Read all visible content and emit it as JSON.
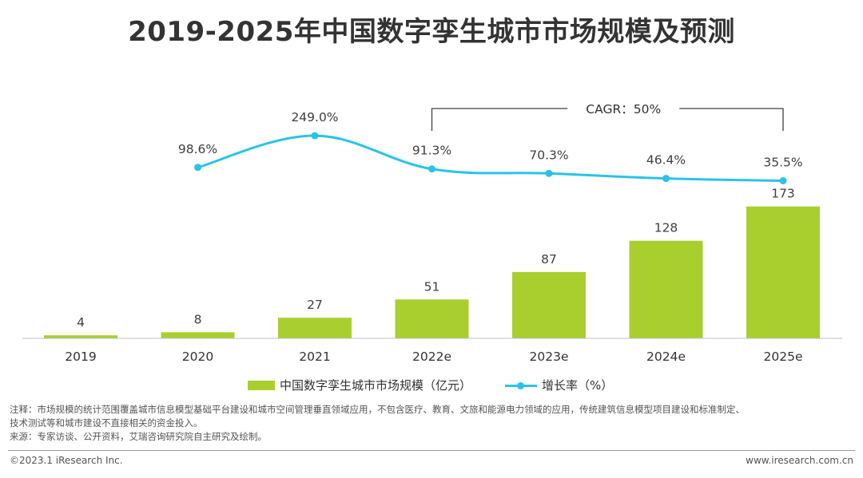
{
  "title": "2019-2025年中国数字孪生城市市场规模及预测",
  "chart_data": {
    "type": "bar",
    "categories": [
      "2019",
      "2020",
      "2021",
      "2022e",
      "2023e",
      "2024e",
      "2025e"
    ],
    "series": [
      {
        "name": "中国数字孪生城市市场规模（亿元）",
        "type": "bar",
        "values": [
          4,
          8,
          27,
          51,
          87,
          128,
          173
        ],
        "labels": [
          "4",
          "8",
          "27",
          "51",
          "87",
          "128",
          "173"
        ],
        "color": "#A8CF2E"
      },
      {
        "name": "增长率（%）",
        "type": "line",
        "values": [
          null,
          98.6,
          249.0,
          91.3,
          70.3,
          46.4,
          35.5
        ],
        "labels": [
          "",
          "98.6%",
          "249.0%",
          "91.3%",
          "70.3%",
          "46.4%",
          "35.5%"
        ],
        "color": "#29C3EA"
      }
    ],
    "annotation": {
      "text": "CAGR：50%",
      "from": "2022e",
      "to": "2025e"
    },
    "ylim": [
      0,
      180
    ],
    "rate_ylim": [
      0,
      300
    ],
    "grid": false,
    "legend": "bottom"
  },
  "notes": {
    "line1": "注释：市场规模的统计范围覆盖城市信息模型基础平台建设和城市空间管理垂直领域应用，不包含医疗、教育、文旅和能源电力领域的应用，传统建筑信息模型项目建设和标准制定、",
    "line2": "技术测试等和城市建设不直接相关的资金投入。",
    "line3": "来源：专家访谈、公开资料，艾瑞咨询研究院自主研究及绘制。"
  },
  "footer": {
    "left": "©2023.1 iResearch Inc.",
    "right": "www.iresearch.com.cn"
  }
}
